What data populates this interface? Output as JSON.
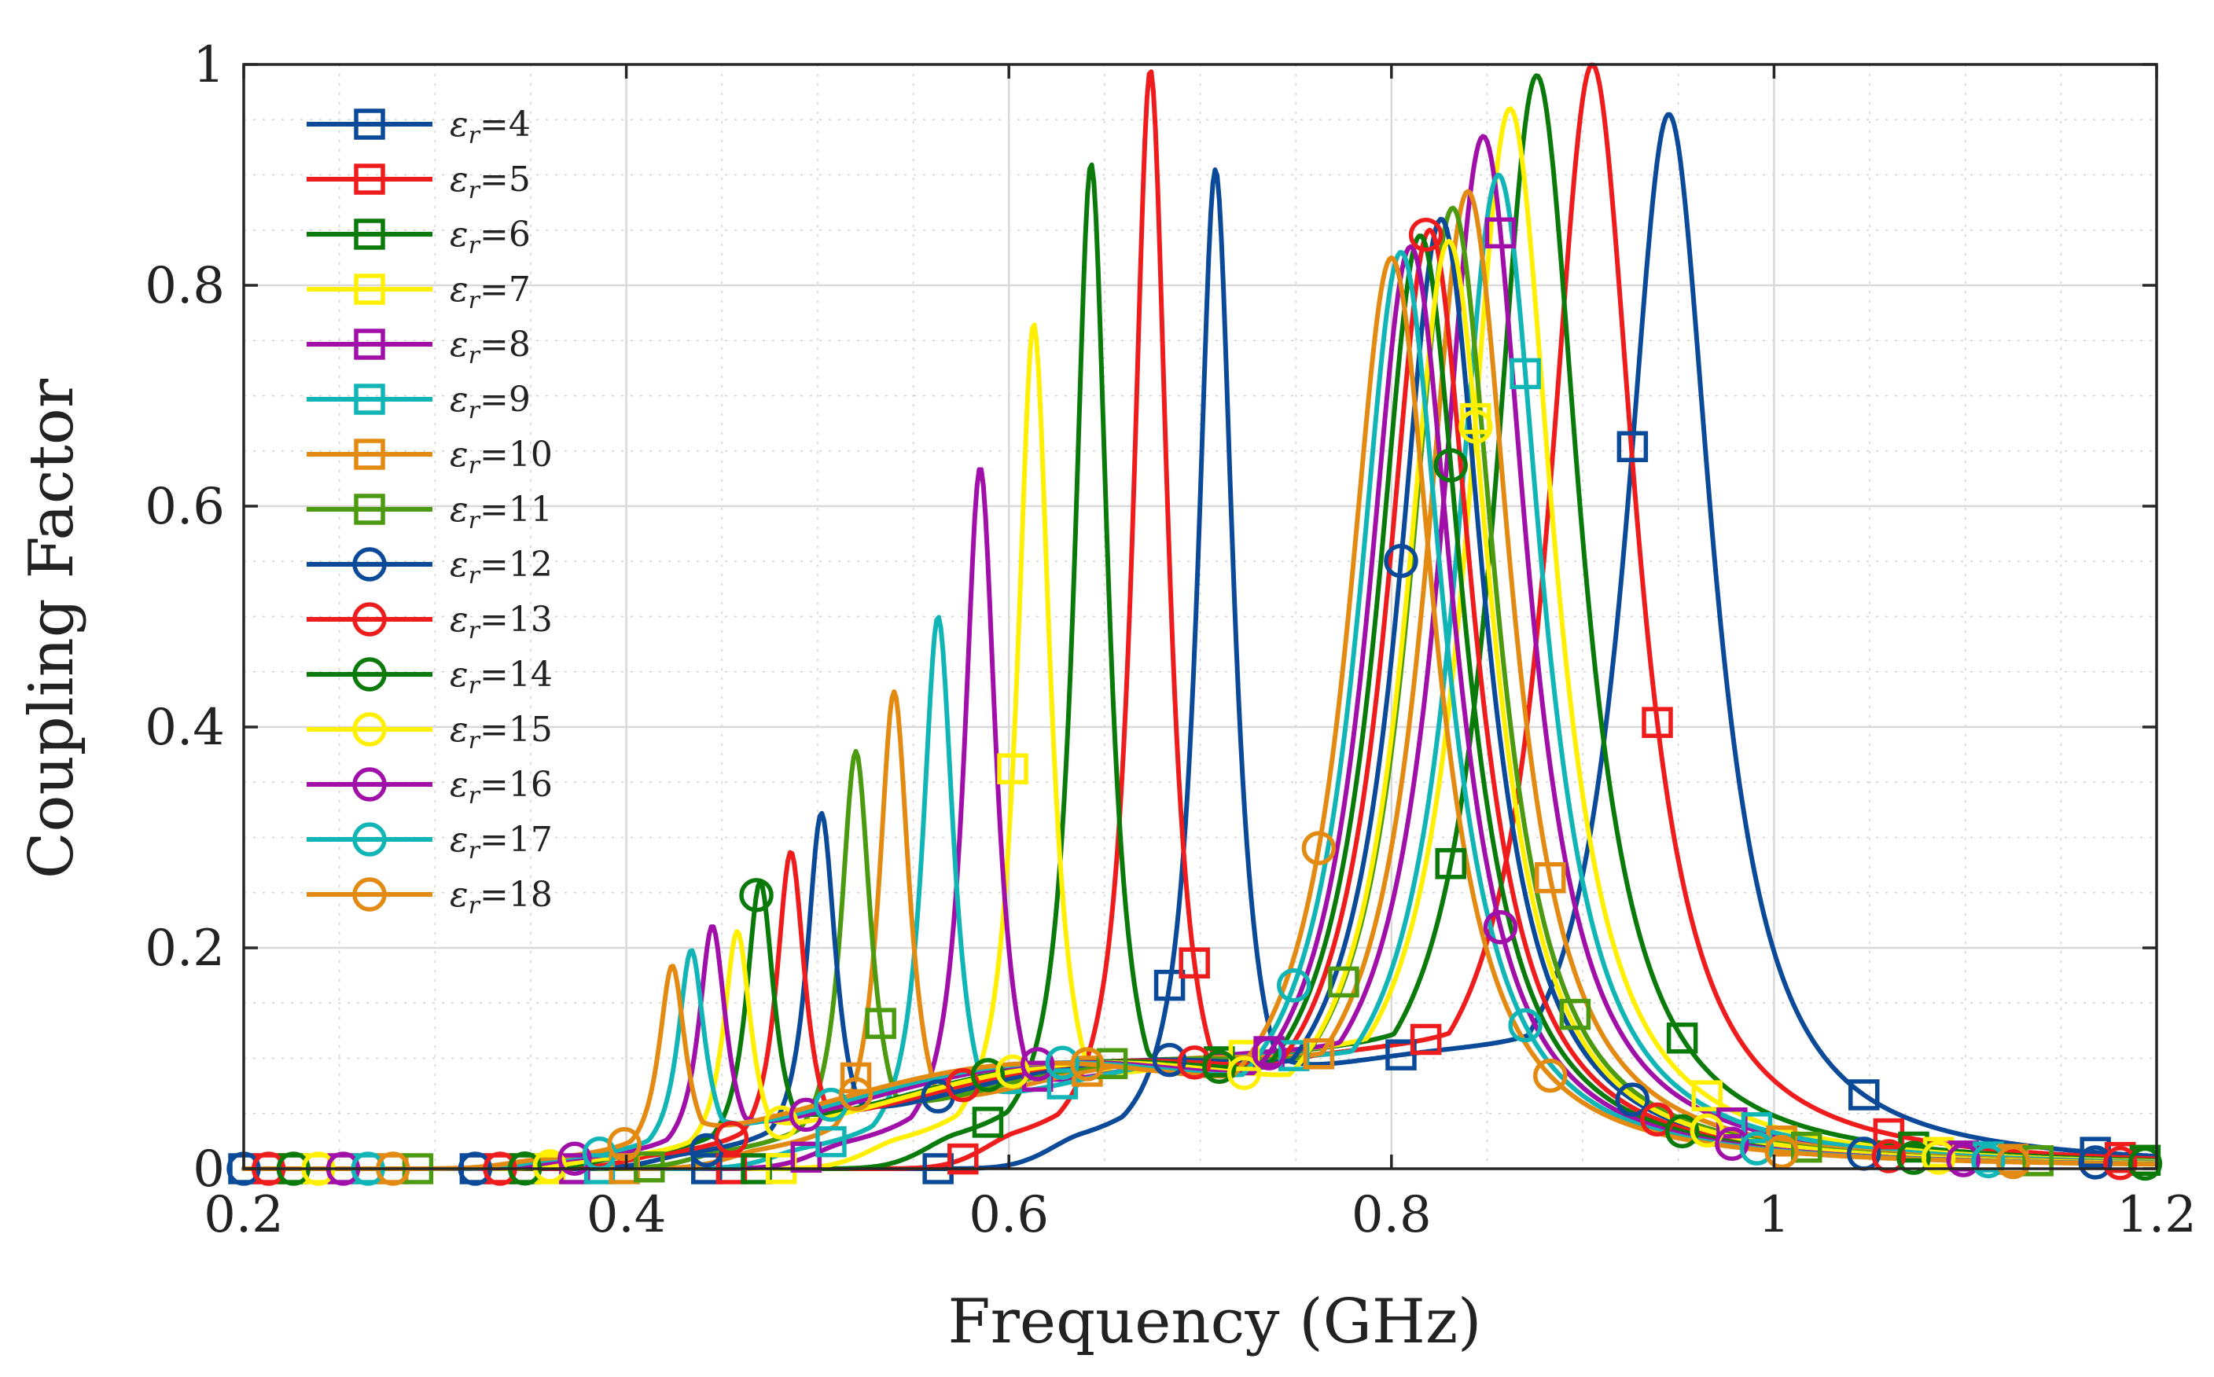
{
  "chart_data": {
    "type": "line",
    "title": "",
    "xlabel": "Frequency (GHz)",
    "ylabel": "Coupling Factor",
    "xlim": [
      0.2,
      1.2
    ],
    "ylim": [
      0,
      1
    ],
    "xticks": [
      0.2,
      0.4,
      0.6,
      0.8,
      1.0,
      1.2
    ],
    "xtick_labels": [
      "0.2",
      "0.4",
      "0.6",
      "0.8",
      "1",
      "1.2"
    ],
    "yticks": [
      0,
      0.2,
      0.4,
      0.6,
      0.8,
      1.0
    ],
    "ytick_labels": [
      "0",
      "0.2",
      "0.4",
      "0.6",
      "0.8",
      "1"
    ],
    "grid": true,
    "legend_position": "top-left",
    "series": [
      {
        "name": "εr=4",
        "legend_base": "ε",
        "legend_sub": "r",
        "legend_value": "=4",
        "color": "#0b4a99",
        "marker": "square",
        "low_peak": {
          "f": 0.708,
          "k": 0.905
        },
        "high_peak": {
          "f": 0.945,
          "k": 0.955
        }
      },
      {
        "name": "εr=5",
        "legend_base": "ε",
        "legend_sub": "r",
        "legend_value": "=5",
        "color": "#ee1c1c",
        "marker": "square",
        "low_peak": {
          "f": 0.674,
          "k": 0.995
        },
        "high_peak": {
          "f": 0.905,
          "k": 1.0
        }
      },
      {
        "name": "εr=6",
        "legend_base": "ε",
        "legend_sub": "r",
        "legend_value": "=6",
        "color": "#0a7a0a",
        "marker": "square",
        "low_peak": {
          "f": 0.643,
          "k": 0.91
        },
        "high_peak": {
          "f": 0.876,
          "k": 0.99
        }
      },
      {
        "name": "εr=7",
        "legend_base": "ε",
        "legend_sub": "r",
        "legend_value": "=7",
        "color": "#ffef00",
        "marker": "square",
        "low_peak": {
          "f": 0.613,
          "k": 0.765
        },
        "high_peak": {
          "f": 0.862,
          "k": 0.96
        }
      },
      {
        "name": "εr=8",
        "legend_base": "ε",
        "legend_sub": "r",
        "legend_value": "=8",
        "color": "#a010a8",
        "marker": "square",
        "low_peak": {
          "f": 0.585,
          "k": 0.635
        },
        "high_peak": {
          "f": 0.848,
          "k": 0.935
        }
      },
      {
        "name": "εr=9",
        "legend_base": "ε",
        "legend_sub": "r",
        "legend_value": "=9",
        "color": "#12b5b5",
        "marker": "square",
        "low_peak": {
          "f": 0.563,
          "k": 0.5
        },
        "high_peak": {
          "f": 0.856,
          "k": 0.9
        }
      },
      {
        "name": "εr=10",
        "legend_base": "ε",
        "legend_sub": "r",
        "legend_value": "=10",
        "color": "#e38a12",
        "marker": "square",
        "low_peak": {
          "f": 0.54,
          "k": 0.432
        },
        "high_peak": {
          "f": 0.84,
          "k": 0.885
        }
      },
      {
        "name": "εr=11",
        "legend_base": "ε",
        "legend_sub": "r",
        "legend_value": "=11",
        "color": "#4c9a10",
        "marker": "square",
        "low_peak": {
          "f": 0.52,
          "k": 0.378
        },
        "high_peak": {
          "f": 0.832,
          "k": 0.87
        }
      },
      {
        "name": "εr=12",
        "legend_base": "ε",
        "legend_sub": "r",
        "legend_value": "=12",
        "color": "#0b4a99",
        "marker": "circle",
        "low_peak": {
          "f": 0.502,
          "k": 0.322
        },
        "high_peak": {
          "f": 0.826,
          "k": 0.86
        }
      },
      {
        "name": "εr=13",
        "legend_base": "ε",
        "legend_sub": "r",
        "legend_value": "=13",
        "color": "#ee1c1c",
        "marker": "circle",
        "low_peak": {
          "f": 0.486,
          "k": 0.287
        },
        "high_peak": {
          "f": 0.82,
          "k": 0.85
        }
      },
      {
        "name": "εr=14",
        "legend_base": "ε",
        "legend_sub": "r",
        "legend_value": "=14",
        "color": "#0a7a0a",
        "marker": "circle",
        "low_peak": {
          "f": 0.47,
          "k": 0.26
        },
        "high_peak": {
          "f": 0.815,
          "k": 0.845
        }
      },
      {
        "name": "εr=15",
        "legend_base": "ε",
        "legend_sub": "r",
        "legend_value": "=15",
        "color": "#ffef00",
        "marker": "circle",
        "low_peak": {
          "f": 0.458,
          "k": 0.215
        },
        "high_peak": {
          "f": 0.83,
          "k": 0.84
        }
      },
      {
        "name": "εr=16",
        "legend_base": "ε",
        "legend_sub": "r",
        "legend_value": "=16",
        "color": "#a010a8",
        "marker": "circle",
        "low_peak": {
          "f": 0.445,
          "k": 0.22
        },
        "high_peak": {
          "f": 0.81,
          "k": 0.835
        }
      },
      {
        "name": "εr=17",
        "legend_base": "ε",
        "legend_sub": "r",
        "legend_value": "=17",
        "color": "#12b5b5",
        "marker": "circle",
        "low_peak": {
          "f": 0.434,
          "k": 0.198
        },
        "high_peak": {
          "f": 0.805,
          "k": 0.83
        }
      },
      {
        "name": "εr=18",
        "legend_base": "ε",
        "legend_sub": "r",
        "legend_value": "=18",
        "color": "#e38a12",
        "marker": "circle",
        "low_peak": {
          "f": 0.424,
          "k": 0.184
        },
        "high_peak": {
          "f": 0.8,
          "k": 0.825
        }
      }
    ]
  }
}
